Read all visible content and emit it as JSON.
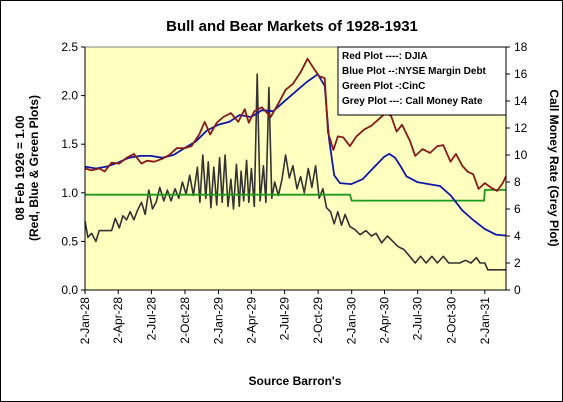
{
  "chart_data": {
    "type": "line",
    "title": "Bull and Bear Markets of 1928-1931",
    "xlabel": "Source Barron's",
    "ylabel": "08 Feb 1926 = 1.00\n(Red, Blue & Green Plots)",
    "y2label": "Call Money Rate (Grey Plot)",
    "ylim": [
      0,
      2.5
    ],
    "y2lim": [
      0,
      18
    ],
    "yticks": [
      "0.0",
      "0.5",
      "1.0",
      "1.5",
      "2.0",
      "2.5"
    ],
    "y2ticks": [
      "0",
      "2",
      "4",
      "6",
      "8",
      "10",
      "12",
      "14",
      "16",
      "18"
    ],
    "xlim": [
      "1928-01-02",
      "1931-03-01"
    ],
    "xticks": [
      {
        "date": "1928-01-02",
        "label": "2-Jan-28"
      },
      {
        "date": "1928-04-02",
        "label": "2-Apr-28"
      },
      {
        "date": "1928-07-02",
        "label": "2-Jul-28"
      },
      {
        "date": "1928-10-02",
        "label": "2-Oct-28"
      },
      {
        "date": "1929-01-02",
        "label": "2-Jan-29"
      },
      {
        "date": "1929-04-02",
        "label": "2-Apr-29"
      },
      {
        "date": "1929-07-02",
        "label": "2-Jul-29"
      },
      {
        "date": "1929-10-02",
        "label": "2-Oct-29"
      },
      {
        "date": "1930-01-02",
        "label": "2-Jan-30"
      },
      {
        "date": "1930-04-02",
        "label": "2-Apr-30"
      },
      {
        "date": "1930-07-02",
        "label": "2-Jul-30"
      },
      {
        "date": "1930-10-02",
        "label": "2-Oct-30"
      },
      {
        "date": "1931-01-02",
        "label": "2-Jan-31"
      }
    ],
    "grid": false,
    "legend": {
      "position": "top-right",
      "entries": [
        "Red Plot ----: DJIA",
        "Blue Plot  --:NYSE Margin Debt",
        "Green Plot -:CinC",
        "Grey Plot ---: Call Money Rate"
      ]
    },
    "colors": {
      "plot_background": "#ffffc0",
      "red": "#8b1a1a",
      "blue": "#0f18a8",
      "green": "#1a9a1a",
      "grey": "#333333"
    },
    "series": [
      {
        "name": "Red Plot ----: DJIA",
        "color": "red",
        "axis": "left",
        "points": [
          [
            "1928-01-02",
            1.25
          ],
          [
            "1928-01-20",
            1.23
          ],
          [
            "1928-02-10",
            1.25
          ],
          [
            "1928-02-25",
            1.22
          ],
          [
            "1928-03-15",
            1.31
          ],
          [
            "1928-04-05",
            1.3
          ],
          [
            "1928-04-25",
            1.36
          ],
          [
            "1928-05-15",
            1.4
          ],
          [
            "1928-06-05",
            1.3
          ],
          [
            "1928-06-20",
            1.33
          ],
          [
            "1928-07-10",
            1.32
          ],
          [
            "1928-08-01",
            1.35
          ],
          [
            "1928-08-20",
            1.39
          ],
          [
            "1928-09-10",
            1.46
          ],
          [
            "1928-10-01",
            1.46
          ],
          [
            "1928-10-20",
            1.48
          ],
          [
            "1928-11-10",
            1.6
          ],
          [
            "1928-11-25",
            1.73
          ],
          [
            "1928-12-10",
            1.6
          ],
          [
            "1928-12-28",
            1.72
          ],
          [
            "1929-01-15",
            1.78
          ],
          [
            "1929-02-05",
            1.82
          ],
          [
            "1929-02-25",
            1.73
          ],
          [
            "1929-03-15",
            1.86
          ],
          [
            "1929-03-26",
            1.72
          ],
          [
            "1929-04-10",
            1.84
          ],
          [
            "1929-05-01",
            1.88
          ],
          [
            "1929-05-25",
            1.78
          ],
          [
            "1929-06-15",
            1.92
          ],
          [
            "1929-07-05",
            2.06
          ],
          [
            "1929-07-25",
            2.12
          ],
          [
            "1929-08-15",
            2.24
          ],
          [
            "1929-09-03",
            2.38
          ],
          [
            "1929-09-20",
            2.28
          ],
          [
            "1929-10-05",
            2.2
          ],
          [
            "1929-10-20",
            2.18
          ],
          [
            "1929-10-29",
            1.62
          ],
          [
            "1929-11-13",
            1.44
          ],
          [
            "1929-11-25",
            1.58
          ],
          [
            "1929-12-10",
            1.57
          ],
          [
            "1929-12-28",
            1.48
          ],
          [
            "1930-01-15",
            1.58
          ],
          [
            "1930-02-05",
            1.65
          ],
          [
            "1930-02-25",
            1.69
          ],
          [
            "1930-03-15",
            1.75
          ],
          [
            "1930-04-05",
            1.82
          ],
          [
            "1930-04-20",
            1.79
          ],
          [
            "1930-05-05",
            1.63
          ],
          [
            "1930-05-20",
            1.7
          ],
          [
            "1930-06-10",
            1.54
          ],
          [
            "1930-06-25",
            1.38
          ],
          [
            "1930-07-15",
            1.45
          ],
          [
            "1930-08-05",
            1.41
          ],
          [
            "1930-08-25",
            1.48
          ],
          [
            "1930-09-10",
            1.49
          ],
          [
            "1930-09-30",
            1.32
          ],
          [
            "1930-10-15",
            1.4
          ],
          [
            "1930-11-01",
            1.28
          ],
          [
            "1930-11-15",
            1.22
          ],
          [
            "1930-12-01",
            1.19
          ],
          [
            "1930-12-16",
            1.04
          ],
          [
            "1931-01-02",
            1.1
          ],
          [
            "1931-01-20",
            1.05
          ],
          [
            "1931-02-05",
            1.02
          ],
          [
            "1931-02-20",
            1.1
          ],
          [
            "1931-03-01",
            1.17
          ]
        ]
      },
      {
        "name": "Blue Plot  --:NYSE Margin Debt",
        "color": "blue",
        "axis": "left",
        "points": [
          [
            "1928-01-02",
            1.27
          ],
          [
            "1928-02-01",
            1.25
          ],
          [
            "1928-03-01",
            1.27
          ],
          [
            "1928-04-01",
            1.31
          ],
          [
            "1928-05-01",
            1.36
          ],
          [
            "1928-06-01",
            1.38
          ],
          [
            "1928-07-01",
            1.38
          ],
          [
            "1928-08-01",
            1.36
          ],
          [
            "1928-09-01",
            1.39
          ],
          [
            "1928-10-01",
            1.46
          ],
          [
            "1928-11-01",
            1.53
          ],
          [
            "1928-12-01",
            1.64
          ],
          [
            "1929-01-01",
            1.7
          ],
          [
            "1929-02-01",
            1.73
          ],
          [
            "1929-03-01",
            1.8
          ],
          [
            "1929-04-01",
            1.78
          ],
          [
            "1929-05-01",
            1.85
          ],
          [
            "1929-06-01",
            1.84
          ],
          [
            "1929-07-01",
            1.94
          ],
          [
            "1929-08-01",
            2.04
          ],
          [
            "1929-09-01",
            2.14
          ],
          [
            "1929-10-01",
            2.22
          ],
          [
            "1929-10-20",
            2.1
          ],
          [
            "1929-11-01",
            1.55
          ],
          [
            "1929-11-15",
            1.18
          ],
          [
            "1929-12-01",
            1.1
          ],
          [
            "1930-01-01",
            1.09
          ],
          [
            "1930-02-01",
            1.14
          ],
          [
            "1930-03-01",
            1.25
          ],
          [
            "1930-04-01",
            1.37
          ],
          [
            "1930-04-15",
            1.4
          ],
          [
            "1930-05-01",
            1.36
          ],
          [
            "1930-05-15",
            1.28
          ],
          [
            "1930-06-01",
            1.17
          ],
          [
            "1930-07-01",
            1.11
          ],
          [
            "1930-08-01",
            1.09
          ],
          [
            "1930-09-01",
            1.07
          ],
          [
            "1930-10-01",
            0.97
          ],
          [
            "1930-11-01",
            0.82
          ],
          [
            "1930-12-01",
            0.72
          ],
          [
            "1931-01-01",
            0.63
          ],
          [
            "1931-02-01",
            0.57
          ],
          [
            "1931-03-01",
            0.56
          ]
        ]
      },
      {
        "name": "Green Plot -:CinC",
        "color": "green",
        "axis": "left",
        "points": [
          [
            "1928-01-02",
            0.98
          ],
          [
            "1929-12-28",
            0.98
          ],
          [
            "1930-01-02",
            0.92
          ],
          [
            "1930-12-31",
            0.92
          ],
          [
            "1931-01-02",
            1.03
          ],
          [
            "1931-03-01",
            1.03
          ]
        ]
      },
      {
        "name": "Grey Plot ---: Call Money Rate",
        "color": "grey",
        "axis": "right",
        "points": [
          [
            "1928-01-02",
            5.1
          ],
          [
            "1928-01-10",
            3.9
          ],
          [
            "1928-01-20",
            4.2
          ],
          [
            "1928-02-01",
            3.6
          ],
          [
            "1928-02-10",
            4.4
          ],
          [
            "1928-03-01",
            4.4
          ],
          [
            "1928-03-15",
            4.4
          ],
          [
            "1928-03-25",
            5.3
          ],
          [
            "1928-04-05",
            4.6
          ],
          [
            "1928-04-15",
            5.5
          ],
          [
            "1928-04-25",
            5.2
          ],
          [
            "1928-05-05",
            5.8
          ],
          [
            "1928-05-15",
            5.2
          ],
          [
            "1928-05-25",
            5.9
          ],
          [
            "1928-06-05",
            6.5
          ],
          [
            "1928-06-15",
            5.6
          ],
          [
            "1928-06-25",
            7.4
          ],
          [
            "1928-07-05",
            6.0
          ],
          [
            "1928-07-15",
            6.5
          ],
          [
            "1928-07-25",
            7.6
          ],
          [
            "1928-08-05",
            6.6
          ],
          [
            "1928-08-15",
            7.4
          ],
          [
            "1928-08-25",
            6.6
          ],
          [
            "1928-09-05",
            7.5
          ],
          [
            "1928-09-15",
            6.8
          ],
          [
            "1928-09-25",
            8.0
          ],
          [
            "1928-10-05",
            7.1
          ],
          [
            "1928-10-15",
            8.5
          ],
          [
            "1928-10-25",
            7.0
          ],
          [
            "1928-11-05",
            9.1
          ],
          [
            "1928-11-12",
            6.5
          ],
          [
            "1928-11-20",
            10.0
          ],
          [
            "1928-11-28",
            6.8
          ],
          [
            "1928-12-05",
            9.5
          ],
          [
            "1928-12-12",
            6.1
          ],
          [
            "1928-12-20",
            9.1
          ],
          [
            "1928-12-28",
            6.3
          ],
          [
            "1929-01-05",
            9.8
          ],
          [
            "1929-01-12",
            6.5
          ],
          [
            "1929-01-20",
            10.0
          ],
          [
            "1929-01-28",
            6.2
          ],
          [
            "1929-02-05",
            8.2
          ],
          [
            "1929-02-12",
            6.0
          ],
          [
            "1929-02-20",
            9.3
          ],
          [
            "1929-02-28",
            6.2
          ],
          [
            "1929-03-05",
            8.8
          ],
          [
            "1929-03-12",
            6.6
          ],
          [
            "1929-03-20",
            9.6
          ],
          [
            "1929-03-26",
            6.5
          ],
          [
            "1929-04-02",
            9.0
          ],
          [
            "1929-04-10",
            6.2
          ],
          [
            "1929-04-18",
            16.0
          ],
          [
            "1929-04-26",
            6.6
          ],
          [
            "1929-05-05",
            9.2
          ],
          [
            "1929-05-12",
            6.5
          ],
          [
            "1929-05-20",
            15.0
          ],
          [
            "1929-05-28",
            6.8
          ],
          [
            "1929-06-05",
            8.0
          ],
          [
            "1929-06-15",
            7.0
          ],
          [
            "1929-06-25",
            8.2
          ],
          [
            "1929-07-05",
            10.0
          ],
          [
            "1929-07-15",
            8.3
          ],
          [
            "1929-07-25",
            9.2
          ],
          [
            "1929-08-05",
            7.5
          ],
          [
            "1929-08-15",
            8.4
          ],
          [
            "1929-08-25",
            7.2
          ],
          [
            "1929-09-05",
            9.0
          ],
          [
            "1929-09-15",
            7.6
          ],
          [
            "1929-09-25",
            9.2
          ],
          [
            "1929-10-05",
            6.8
          ],
          [
            "1929-10-15",
            7.5
          ],
          [
            "1929-10-25",
            6.1
          ],
          [
            "1929-11-05",
            5.8
          ],
          [
            "1929-11-15",
            4.9
          ],
          [
            "1929-11-25",
            5.8
          ],
          [
            "1929-12-05",
            4.8
          ],
          [
            "1929-12-15",
            5.6
          ],
          [
            "1929-12-28",
            4.7
          ],
          [
            "1930-01-10",
            4.5
          ],
          [
            "1930-01-25",
            4.1
          ],
          [
            "1930-02-10",
            4.4
          ],
          [
            "1930-02-25",
            4.0
          ],
          [
            "1930-03-10",
            4.2
          ],
          [
            "1930-03-25",
            3.5
          ],
          [
            "1930-04-10",
            4.0
          ],
          [
            "1930-04-25",
            3.6
          ],
          [
            "1930-05-10",
            3.2
          ],
          [
            "1930-05-25",
            3.0
          ],
          [
            "1930-06-10",
            2.5
          ],
          [
            "1930-06-25",
            2.0
          ],
          [
            "1930-07-10",
            2.5
          ],
          [
            "1930-07-25",
            2.0
          ],
          [
            "1930-08-10",
            2.5
          ],
          [
            "1930-08-25",
            2.0
          ],
          [
            "1930-09-10",
            2.5
          ],
          [
            "1930-09-25",
            2.0
          ],
          [
            "1930-10-10",
            2.0
          ],
          [
            "1930-10-25",
            2.0
          ],
          [
            "1930-11-10",
            2.2
          ],
          [
            "1930-11-25",
            2.0
          ],
          [
            "1930-12-10",
            2.4
          ],
          [
            "1930-12-20",
            2.0
          ],
          [
            "1931-01-02",
            2.0
          ],
          [
            "1931-01-10",
            1.5
          ],
          [
            "1931-03-01",
            1.5
          ]
        ]
      }
    ]
  }
}
